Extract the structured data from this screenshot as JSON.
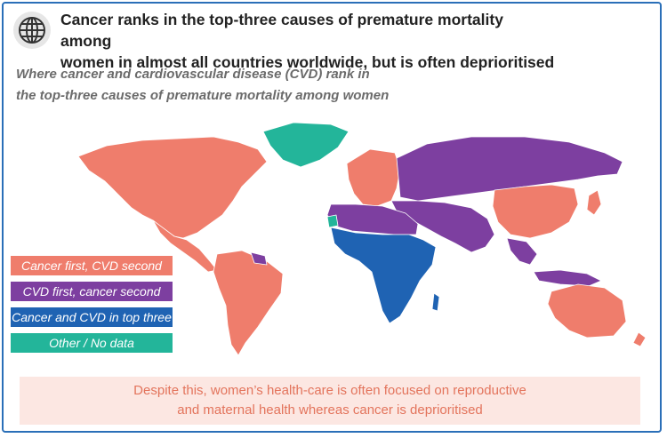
{
  "header": {
    "icon": "globe-icon",
    "title_line1": "Cancer ranks in the top-three causes of premature mortality among",
    "title_line2": "women in almost all countries worldwide, but is often deprioritised"
  },
  "subtitle": {
    "line1": "Where cancer and cardiovascular disease (CVD) rank in",
    "line2": "the top-three causes of premature mortality among women"
  },
  "legend": [
    {
      "label": "Cancer first, CVD second",
      "color": "#ef7d6c"
    },
    {
      "label": "CVD first, cancer second",
      "color": "#7d3fa0"
    },
    {
      "label": "Cancer and CVD in top three",
      "color": "#1f63b3"
    },
    {
      "label": "Other / No data",
      "color": "#23b59a"
    }
  ],
  "footer": {
    "line1": "Despite this, women’s health-care is often focused on reproductive",
    "line2": "and maternal health whereas cancer is deprioritised"
  },
  "colors": {
    "frame_border": "#2a6fb8",
    "footer_bg": "#fce7e2",
    "footer_text": "#e3745c"
  }
}
